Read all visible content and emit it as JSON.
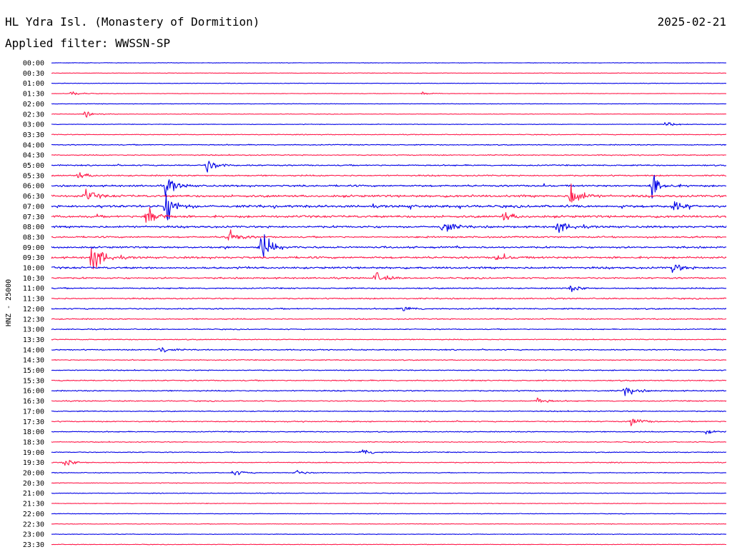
{
  "chart_data": {
    "type": "line",
    "title": "HL Ydra Isl. (Monastery of Dormition)",
    "date": "2025-02-21",
    "subtitle": "Applied filter: WWSSN-SP",
    "ylabel": "HNZ - 25000",
    "colors": [
      "#0000e6",
      "#ff1a4a"
    ],
    "rows": [
      "00:00",
      "00:30",
      "01:00",
      "01:30",
      "02:00",
      "02:30",
      "03:00",
      "03:30",
      "04:00",
      "04:30",
      "05:00",
      "05:30",
      "06:00",
      "06:30",
      "07:00",
      "07:30",
      "08:00",
      "08:30",
      "09:00",
      "09:30",
      "10:00",
      "10:30",
      "11:00",
      "11:30",
      "12:00",
      "12:30",
      "13:00",
      "13:30",
      "14:00",
      "14:30",
      "15:00",
      "15:30",
      "16:00",
      "16:30",
      "17:00",
      "17:30",
      "18:00",
      "18:30",
      "19:00",
      "19:30",
      "20:00",
      "20:30",
      "21:00",
      "21:30",
      "22:00",
      "22:30",
      "23:00",
      "23:30"
    ],
    "row_activity": [
      0.06,
      0.06,
      0.07,
      0.07,
      0.08,
      0.08,
      0.1,
      0.2,
      0.3,
      0.3,
      0.45,
      0.5,
      0.7,
      0.9,
      1.0,
      0.9,
      0.8,
      0.6,
      0.7,
      0.8,
      0.8,
      0.6,
      0.45,
      0.45,
      0.45,
      0.4,
      0.3,
      0.3,
      0.35,
      0.3,
      0.3,
      0.4,
      0.4,
      0.35,
      0.3,
      0.35,
      0.3,
      0.25,
      0.25,
      0.25,
      0.2,
      0.15,
      0.15,
      0.12,
      0.1,
      0.1,
      0.12,
      0.1
    ],
    "events": [
      {
        "row": 3,
        "t": 0.03,
        "amp": 5
      },
      {
        "row": 3,
        "t": 0.55,
        "amp": 4
      },
      {
        "row": 5,
        "t": 0.05,
        "amp": 6
      },
      {
        "row": 6,
        "t": 0.91,
        "amp": 6
      },
      {
        "row": 10,
        "t": 0.23,
        "amp": 18
      },
      {
        "row": 11,
        "t": 0.04,
        "amp": 8
      },
      {
        "row": 12,
        "t": 0.17,
        "amp": 22
      },
      {
        "row": 12,
        "t": 0.89,
        "amp": 28
      },
      {
        "row": 13,
        "t": 0.05,
        "amp": 14
      },
      {
        "row": 13,
        "t": 0.77,
        "amp": 30
      },
      {
        "row": 14,
        "t": 0.17,
        "amp": 38
      },
      {
        "row": 14,
        "t": 0.92,
        "amp": 14
      },
      {
        "row": 15,
        "t": 0.14,
        "amp": 35
      },
      {
        "row": 15,
        "t": 0.67,
        "amp": 12
      },
      {
        "row": 16,
        "t": 0.58,
        "amp": 18
      },
      {
        "row": 16,
        "t": 0.75,
        "amp": 16
      },
      {
        "row": 17,
        "t": 0.26,
        "amp": 22
      },
      {
        "row": 18,
        "t": 0.31,
        "amp": 40
      },
      {
        "row": 19,
        "t": 0.06,
        "amp": 42
      },
      {
        "row": 19,
        "t": 0.66,
        "amp": 8
      },
      {
        "row": 20,
        "t": 0.92,
        "amp": 12
      },
      {
        "row": 21,
        "t": 0.48,
        "amp": 14
      },
      {
        "row": 22,
        "t": 0.77,
        "amp": 8
      },
      {
        "row": 24,
        "t": 0.52,
        "amp": 8
      },
      {
        "row": 28,
        "t": 0.16,
        "amp": 9
      },
      {
        "row": 32,
        "t": 0.85,
        "amp": 14
      },
      {
        "row": 33,
        "t": 0.72,
        "amp": 8
      },
      {
        "row": 35,
        "t": 0.86,
        "amp": 12
      },
      {
        "row": 36,
        "t": 0.97,
        "amp": 8
      },
      {
        "row": 38,
        "t": 0.46,
        "amp": 10
      },
      {
        "row": 39,
        "t": 0.02,
        "amp": 10
      },
      {
        "row": 40,
        "t": 0.27,
        "amp": 7
      },
      {
        "row": 40,
        "t": 0.36,
        "amp": 7
      }
    ]
  }
}
